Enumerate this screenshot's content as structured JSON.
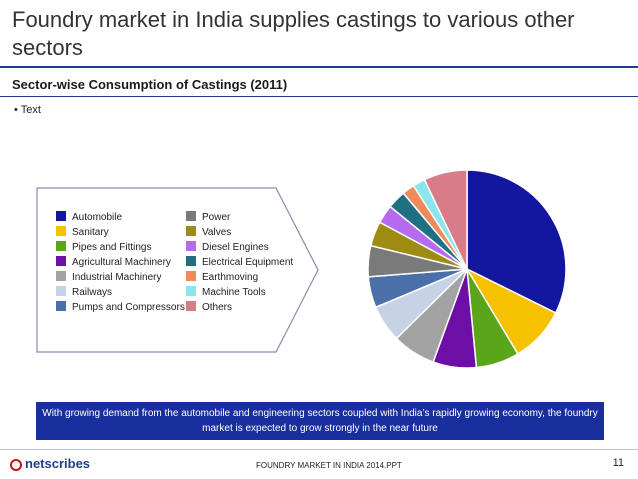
{
  "slide": {
    "title": "Foundry market in India supplies castings to various other sectors",
    "subtitle": "Sector-wise Consumption of Castings (2011)",
    "bullet": "• Text"
  },
  "banner": {
    "text": "With growing demand from the automobile and engineering sectors coupled with India’s rapidly growing economy, the foundry market is expected to grow strongly in the near future"
  },
  "footer": {
    "logo": "netscribes",
    "center": "FOUNDRY MARKET IN INDIA 2014.PPT",
    "page": "11"
  },
  "colors": {
    "title_rule": "#1f3f8a",
    "banner_bg": "#1a2f9e"
  },
  "chart_data": {
    "type": "pie",
    "title": "Sector-wise Consumption of Castings (2011)",
    "legend_position": "left",
    "slices": [
      {
        "label": "Automobile",
        "value": 32,
        "color": "#13169e"
      },
      {
        "label": "Sanitary",
        "value": 9,
        "color": "#f6c100"
      },
      {
        "label": "Pipes and Fittings",
        "value": 7,
        "color": "#5aa51a"
      },
      {
        "label": "Agricultural Machinery",
        "value": 7,
        "color": "#6d0fa6"
      },
      {
        "label": "Industrial Machinery",
        "value": 7,
        "color": "#a3a3a3"
      },
      {
        "label": "Railways",
        "value": 6,
        "color": "#c7d2e6"
      },
      {
        "label": "Pumps and Compressors",
        "value": 5,
        "color": "#4a6fa9"
      },
      {
        "label": "Power",
        "value": 5,
        "color": "#7a7a7a"
      },
      {
        "label": "Valves",
        "value": 4,
        "color": "#9e8b12"
      },
      {
        "label": "Diesel Engines",
        "value": 3,
        "color": "#b56af0"
      },
      {
        "label": "Electrical Equipment",
        "value": 3,
        "color": "#1f7083"
      },
      {
        "label": "Earthmoving",
        "value": 2,
        "color": "#ee8b5d"
      },
      {
        "label": "Machine Tools",
        "value": 2,
        "color": "#8be6ec"
      },
      {
        "label": "Others",
        "value": 7,
        "color": "#d97c89"
      }
    ]
  }
}
